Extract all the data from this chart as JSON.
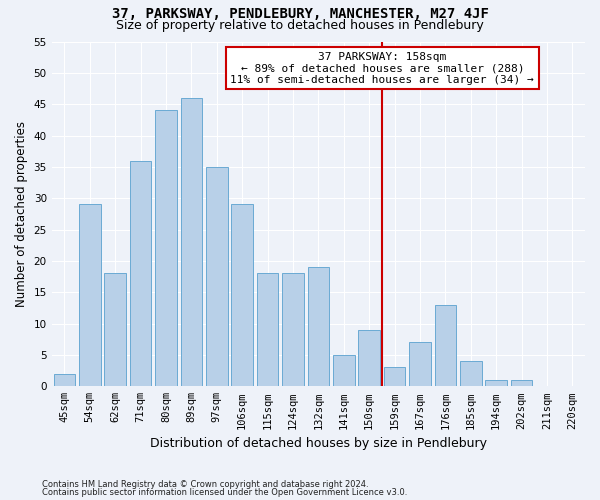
{
  "title": "37, PARKSWAY, PENDLEBURY, MANCHESTER, M27 4JF",
  "subtitle": "Size of property relative to detached houses in Pendlebury",
  "xlabel": "Distribution of detached houses by size in Pendlebury",
  "ylabel": "Number of detached properties",
  "categories": [
    "45sqm",
    "54sqm",
    "62sqm",
    "71sqm",
    "80sqm",
    "89sqm",
    "97sqm",
    "106sqm",
    "115sqm",
    "124sqm",
    "132sqm",
    "141sqm",
    "150sqm",
    "159sqm",
    "167sqm",
    "176sqm",
    "185sqm",
    "194sqm",
    "202sqm",
    "211sqm",
    "220sqm"
  ],
  "values": [
    2,
    29,
    18,
    36,
    44,
    46,
    35,
    29,
    18,
    18,
    19,
    5,
    9,
    3,
    7,
    13,
    4,
    1,
    1,
    0,
    0
  ],
  "bar_color": "#b8d0e8",
  "bar_edge_color": "#6aaad4",
  "vline_color": "#cc0000",
  "annotation_title": "37 PARKSWAY: 158sqm",
  "annotation_line1": "← 89% of detached houses are smaller (288)",
  "annotation_line2": "11% of semi-detached houses are larger (34) →",
  "annotation_box_color": "#ffffff",
  "annotation_box_edge": "#cc0000",
  "ylim": [
    0,
    55
  ],
  "yticks": [
    0,
    5,
    10,
    15,
    20,
    25,
    30,
    35,
    40,
    45,
    50,
    55
  ],
  "footnote1": "Contains HM Land Registry data © Crown copyright and database right 2024.",
  "footnote2": "Contains public sector information licensed under the Open Government Licence v3.0.",
  "background_color": "#eef2f9",
  "grid_color": "#ffffff",
  "title_fontsize": 10,
  "subtitle_fontsize": 9,
  "tick_fontsize": 7.5,
  "ylabel_fontsize": 8.5,
  "xlabel_fontsize": 9,
  "footnote_fontsize": 6,
  "annotation_fontsize": 8
}
